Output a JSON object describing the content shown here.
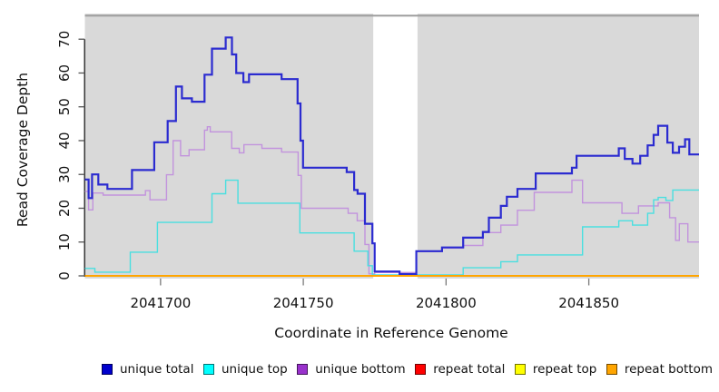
{
  "chart_data": {
    "type": "line",
    "subtype": "step-coverage-plot",
    "title": "",
    "xlabel": "Coordinate in Reference Genome",
    "ylabel": "Read Coverage Depth",
    "xlim": [
      2041673.5,
      2041888.6
    ],
    "ylim": [
      0,
      70
    ],
    "x_ticks": [
      {
        "value": 2041700,
        "label": "2041700"
      },
      {
        "value": 2041750,
        "label": "2041750"
      },
      {
        "value": 2041800,
        "label": "2041800"
      },
      {
        "value": 2041850,
        "label": "2041850"
      }
    ],
    "y_ticks": [
      {
        "value": 0,
        "label": "0"
      },
      {
        "value": 10,
        "label": "10"
      },
      {
        "value": 20,
        "label": "20"
      },
      {
        "value": 30,
        "label": "30"
      },
      {
        "value": 40,
        "label": "40"
      },
      {
        "value": 50,
        "label": "50"
      },
      {
        "value": 60,
        "label": "60"
      },
      {
        "value": 70,
        "label": "70"
      }
    ],
    "grid": false,
    "plot_background_color": "#D9D9D9",
    "gap_region": {
      "x_start": 2041774.5,
      "x_end": 2041790,
      "color": "#FFFFFF",
      "top_border_color": "#9E9E9E"
    },
    "legend_position": "bottom-horizontal",
    "legend": [
      {
        "label": "unique total",
        "color": "#0000CD"
      },
      {
        "label": "unique top",
        "color": "#00FFFF"
      },
      {
        "label": "unique bottom",
        "color": "#9932CC"
      },
      {
        "label": "repeat total",
        "color": "#FF0000"
      },
      {
        "label": "repeat top",
        "color": "#FFFF00"
      },
      {
        "label": "repeat bottom",
        "color": "#FFA500"
      }
    ],
    "series": [
      {
        "name": "repeat total",
        "line_color": "#DD2222",
        "line_width": 1.2,
        "points": [
          [
            2041673.5,
            0
          ]
        ]
      },
      {
        "name": "repeat top",
        "line_color": "#EEEE33",
        "line_width": 1.2,
        "points": [
          [
            2041673.5,
            0
          ]
        ]
      },
      {
        "name": "unique bottom",
        "line_color": "#C293DD",
        "line_width": 1.4,
        "points": [
          [
            2041673.5,
            25
          ],
          [
            2041674.8,
            19.5
          ],
          [
            2041676.3,
            24.5
          ],
          [
            2041679.9,
            23.9
          ],
          [
            2041694.7,
            25.2
          ],
          [
            2041696.3,
            22.5
          ],
          [
            2041702.1,
            29.9
          ],
          [
            2041704.4,
            40
          ],
          [
            2041707,
            35.5
          ],
          [
            2041710,
            37.3
          ],
          [
            2041715.4,
            43.1
          ],
          [
            2041716.4,
            44.1
          ],
          [
            2041717.4,
            42.6
          ],
          [
            2041724.9,
            37.7
          ],
          [
            2041727.6,
            36.4
          ],
          [
            2041729.2,
            38.8
          ],
          [
            2041735.5,
            37.7
          ],
          [
            2041742.4,
            36.6
          ],
          [
            2041748.2,
            29.7
          ],
          [
            2041749.3,
            20
          ],
          [
            2041765.7,
            18.5
          ],
          [
            2041768.9,
            16.3
          ],
          [
            2041771.6,
            9.3
          ],
          [
            2041773,
            0.6
          ],
          [
            2041775,
            1
          ],
          [
            2041789.6,
            7.2
          ],
          [
            2041798.6,
            8.2
          ],
          [
            2041806,
            9
          ],
          [
            2041812.9,
            12.8
          ],
          [
            2041819.2,
            15
          ],
          [
            2041825,
            19.4
          ],
          [
            2041830.9,
            24.7
          ],
          [
            2041844.1,
            28.3
          ],
          [
            2041847.8,
            21.6
          ],
          [
            2041861.6,
            18.5
          ],
          [
            2041867.4,
            20.7
          ],
          [
            2041874.3,
            21.6
          ],
          [
            2041878.3,
            17.2
          ],
          [
            2041880.4,
            10.5
          ],
          [
            2041881.7,
            15.4
          ],
          [
            2041884.7,
            10
          ]
        ]
      },
      {
        "name": "unique top",
        "line_color": "#4ADFE0",
        "line_width": 1.4,
        "points": [
          [
            2041673.5,
            2.2
          ],
          [
            2041677,
            1.1
          ],
          [
            2041689.4,
            7
          ],
          [
            2041698.9,
            15.8
          ],
          [
            2041718,
            24.3
          ],
          [
            2041722.8,
            28.3
          ],
          [
            2041727.1,
            21.5
          ],
          [
            2041748.8,
            12.7
          ],
          [
            2041767.8,
            7.3
          ],
          [
            2041772.6,
            3
          ],
          [
            2041774.2,
            0.3
          ],
          [
            2041806,
            2.4
          ],
          [
            2041819.2,
            4.2
          ],
          [
            2041825,
            6.2
          ],
          [
            2041847.8,
            14.5
          ],
          [
            2041860.5,
            16.3
          ],
          [
            2041865.3,
            15
          ],
          [
            2041870.6,
            18.5
          ],
          [
            2041872.7,
            22.5
          ],
          [
            2041874.3,
            23.2
          ],
          [
            2041877,
            22.3
          ],
          [
            2041879.4,
            25.4
          ]
        ]
      },
      {
        "name": "unique total",
        "line_color": "#2B2BD0",
        "line_width": 2.2,
        "points": [
          [
            2041673.5,
            28.5
          ],
          [
            2041674.8,
            23
          ],
          [
            2041676,
            30
          ],
          [
            2041678.2,
            27
          ],
          [
            2041681.4,
            25.7
          ],
          [
            2041690,
            31.3
          ],
          [
            2041697.8,
            39.5
          ],
          [
            2041702.5,
            45.8
          ],
          [
            2041705.4,
            56
          ],
          [
            2041707.5,
            52.5
          ],
          [
            2041711,
            51.5
          ],
          [
            2041715.4,
            59.5
          ],
          [
            2041718,
            67.2
          ],
          [
            2041722.8,
            70.5
          ],
          [
            2041725,
            65.5
          ],
          [
            2041726.5,
            60
          ],
          [
            2041729,
            57.3
          ],
          [
            2041731,
            59.6
          ],
          [
            2041742.4,
            58.2
          ],
          [
            2041748,
            51
          ],
          [
            2041749,
            40
          ],
          [
            2041749.9,
            32
          ],
          [
            2041765.2,
            30.7
          ],
          [
            2041767.8,
            25.4
          ],
          [
            2041769,
            24.3
          ],
          [
            2041771.6,
            15.4
          ],
          [
            2041774.2,
            9.6
          ],
          [
            2041775,
            1.3
          ],
          [
            2041783.7,
            0.5
          ],
          [
            2041789.6,
            7.3
          ],
          [
            2041798.6,
            8.4
          ],
          [
            2041806,
            11.3
          ],
          [
            2041812.9,
            13
          ],
          [
            2041815,
            17.2
          ],
          [
            2041819.2,
            20.7
          ],
          [
            2041821.3,
            23.4
          ],
          [
            2041825,
            25.7
          ],
          [
            2041831.4,
            30.3
          ],
          [
            2041844.1,
            32
          ],
          [
            2041845.7,
            35.5
          ],
          [
            2041860.5,
            37.7
          ],
          [
            2041862.6,
            34.6
          ],
          [
            2041865.3,
            33.2
          ],
          [
            2041868,
            35.5
          ],
          [
            2041870.6,
            38.6
          ],
          [
            2041872.7,
            41.7
          ],
          [
            2041874.3,
            44.4
          ],
          [
            2041877.5,
            39.4
          ],
          [
            2041879.4,
            36.4
          ],
          [
            2041881.6,
            38.2
          ],
          [
            2041883.7,
            40.4
          ],
          [
            2041885.2,
            35.9
          ]
        ]
      },
      {
        "name": "repeat bottom",
        "line_color": "#FFA500",
        "line_width": 2,
        "points": [
          [
            2041673.5,
            0
          ]
        ]
      }
    ]
  }
}
